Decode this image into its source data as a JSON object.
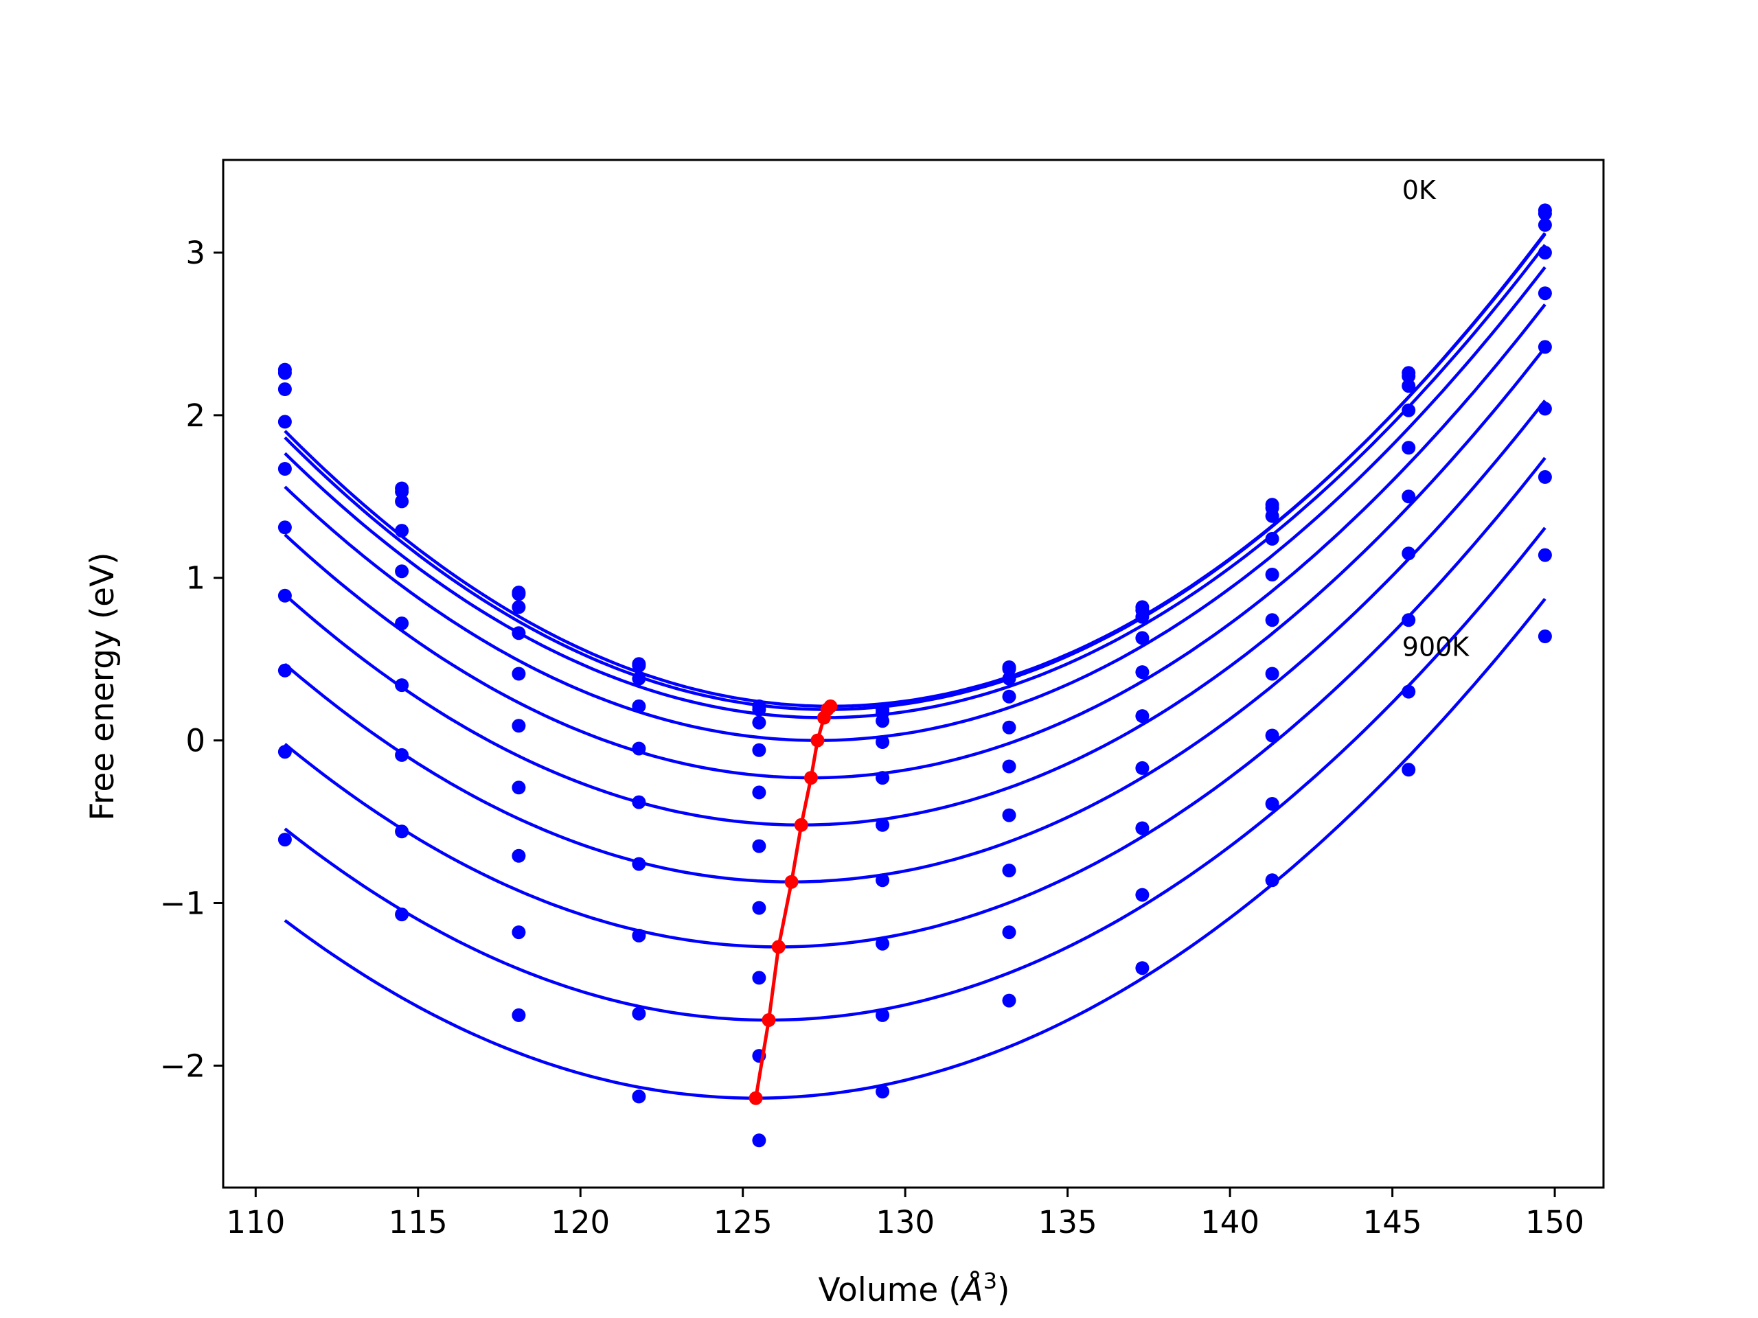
{
  "chart_data": {
    "type": "line",
    "title": "",
    "xlabel_prefix": "Volume (",
    "xlabel_unit": "Å",
    "xlabel_exp": "3",
    "xlabel_suffix": ")",
    "ylabel": "Free energy (eV)",
    "xlim": [
      109,
      151.5
    ],
    "ylim": [
      -2.75,
      3.57
    ],
    "xticks": [
      110,
      115,
      120,
      125,
      130,
      135,
      140,
      145,
      150
    ],
    "xtick_labels": [
      "110",
      "115",
      "120",
      "125",
      "130",
      "135",
      "140",
      "145",
      "150"
    ],
    "yticks": [
      -2,
      -1,
      0,
      1,
      2,
      3
    ],
    "ytick_labels": [
      "−2",
      "−1",
      "0",
      "1",
      "2",
      "3"
    ],
    "grid": false,
    "colors": {
      "fit": "#0000ff",
      "points": "#0000ff",
      "minima": "#ff0000"
    },
    "annotations": [
      {
        "text": "0K",
        "x": 145.3,
        "y": 3.33
      },
      {
        "text": "900K",
        "x": 145.3,
        "y": 0.52
      }
    ],
    "volumes": [
      110.9,
      114.5,
      118.1,
      121.8,
      125.5,
      129.3,
      133.2,
      137.3,
      141.3,
      145.5,
      149.7
    ],
    "curve_x_range": [
      110.9,
      149.7
    ],
    "curves": [
      {
        "points": [
          2.28,
          1.55,
          0.91,
          0.47,
          0.21,
          0.19,
          0.45,
          0.82,
          1.45,
          2.26,
          3.26
        ],
        "fit": {
          "a": 0.006,
          "vmin": 127.7,
          "fmin": 0.21
        }
      },
      {
        "points": [
          2.26,
          1.53,
          0.9,
          0.46,
          0.19,
          0.17,
          0.44,
          0.8,
          1.43,
          2.24,
          3.24
        ],
        "fit": {
          "a": 0.006,
          "vmin": 127.6,
          "fmin": 0.19
        }
      },
      {
        "points": [
          2.16,
          1.47,
          0.82,
          0.38,
          0.11,
          0.12,
          0.38,
          0.76,
          1.38,
          2.18,
          3.17
        ],
        "fit": {
          "a": 0.0059,
          "vmin": 127.5,
          "fmin": 0.14
        }
      },
      {
        "points": [
          1.96,
          1.29,
          0.66,
          0.21,
          -0.06,
          -0.01,
          0.27,
          0.63,
          1.24,
          2.03,
          3.0
        ],
        "fit": {
          "a": 0.0058,
          "vmin": 127.3,
          "fmin": 0.0
        }
      },
      {
        "points": [
          1.67,
          1.04,
          0.41,
          -0.05,
          -0.32,
          -0.23,
          0.08,
          0.42,
          1.02,
          1.8,
          2.75
        ],
        "fit": {
          "a": 0.0057,
          "vmin": 127.1,
          "fmin": -0.23
        }
      },
      {
        "points": [
          1.31,
          0.72,
          0.09,
          -0.38,
          -0.65,
          -0.52,
          -0.16,
          0.15,
          0.74,
          1.5,
          2.42
        ],
        "fit": {
          "a": 0.0056,
          "vmin": 126.8,
          "fmin": -0.52
        }
      },
      {
        "points": [
          0.89,
          0.34,
          -0.29,
          -0.76,
          -1.03,
          -0.86,
          -0.46,
          -0.17,
          0.41,
          1.15,
          2.04
        ],
        "fit": {
          "a": 0.0055,
          "vmin": 126.5,
          "fmin": -0.87
        }
      },
      {
        "points": [
          0.43,
          -0.09,
          -0.71,
          -1.2,
          -1.46,
          -1.25,
          -0.8,
          -0.54,
          0.03,
          0.74,
          1.62
        ],
        "fit": {
          "a": 0.0054,
          "vmin": 126.1,
          "fmin": -1.27
        }
      },
      {
        "points": [
          -0.07,
          -0.56,
          -1.18,
          -1.68,
          -1.94,
          -1.69,
          -1.18,
          -0.95,
          -0.39,
          0.3,
          1.14
        ],
        "fit": {
          "a": 0.0053,
          "vmin": 125.8,
          "fmin": -1.72
        }
      },
      {
        "points": [
          -0.61,
          -1.07,
          -1.69,
          -2.19,
          -2.46,
          -2.16,
          -1.6,
          -1.4,
          -0.86,
          -0.18,
          0.64
        ],
        "fit": {
          "a": 0.0052,
          "vmin": 125.4,
          "fmin": -2.2
        }
      }
    ],
    "minima": {
      "x": [
        127.7,
        127.6,
        127.5,
        127.3,
        127.1,
        126.8,
        126.5,
        126.1,
        125.8,
        125.4
      ],
      "y": [
        0.21,
        0.19,
        0.14,
        0.0,
        -0.23,
        -0.52,
        -0.87,
        -1.27,
        -1.72,
        -2.2
      ]
    }
  }
}
